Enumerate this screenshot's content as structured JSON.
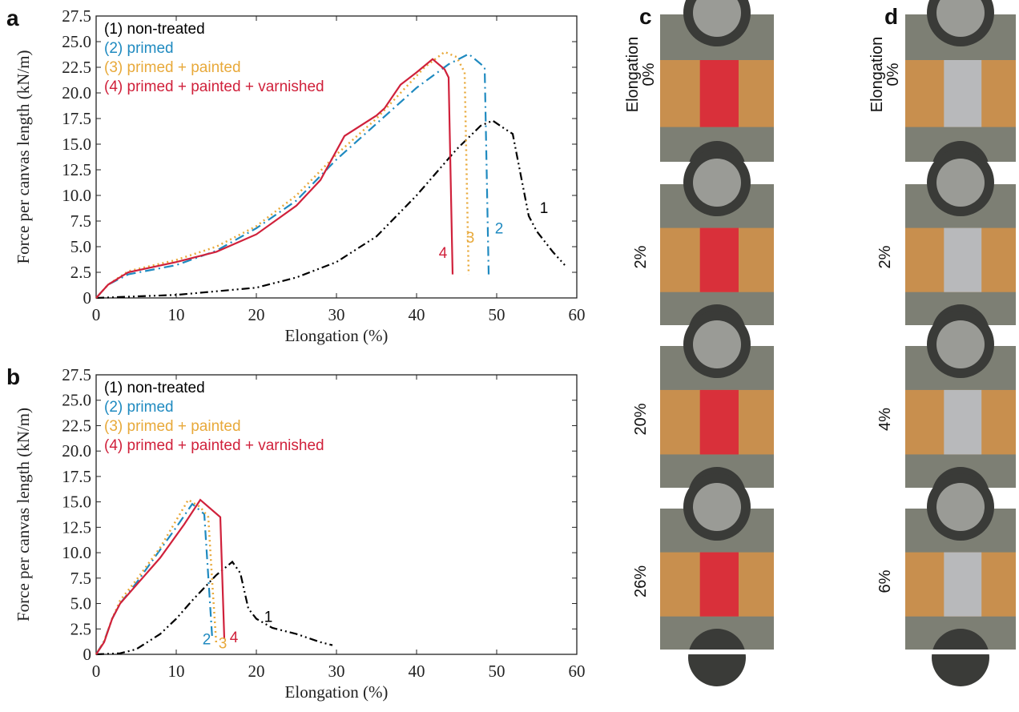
{
  "chart_data": [
    {
      "type": "line",
      "panel": "a",
      "xlabel": "Elongation (%)",
      "ylabel": "Force per canvas length (kN/m)",
      "xlim": [
        0,
        60
      ],
      "ylim": [
        0,
        27.5
      ],
      "xticks": [
        0,
        10,
        20,
        30,
        40,
        50,
        60
      ],
      "yticks": [
        0,
        2.5,
        {
          "value": 5,
          "label": "5.0"
        },
        7.5,
        {
          "value": 10,
          "label": "10.0"
        },
        12.5,
        {
          "value": 15,
          "label": "15.0"
        },
        17.5,
        {
          "value": 20,
          "label": "20.0"
        },
        22.5,
        {
          "value": 25,
          "label": "25.0"
        },
        27.5
      ],
      "legend": "upper left",
      "series": [
        {
          "name": "(1) non-treated",
          "color": "#000000",
          "dash": "dash-dot-dot",
          "x": [
            0,
            10,
            20,
            25,
            30,
            35,
            40,
            45,
            48,
            49.5,
            51,
            52,
            53,
            54,
            55,
            57,
            58.5
          ],
          "values": [
            0,
            0.3,
            1,
            2,
            3.5,
            6,
            10,
            14.5,
            16.8,
            17.3,
            16.5,
            16,
            12,
            8,
            6.5,
            4.5,
            3.2
          ]
        },
        {
          "name": "(2) primed",
          "color": "#1f8ac0",
          "dash": "dash-dot",
          "x": [
            0,
            1.5,
            4,
            10,
            15,
            20,
            25,
            30,
            35,
            40,
            44,
            46.5,
            48.5,
            49
          ],
          "values": [
            0,
            1.3,
            2.3,
            3.2,
            4.6,
            6.8,
            9.5,
            13.5,
            17,
            20.5,
            22.8,
            23.8,
            22.5,
            2.3
          ]
        },
        {
          "name": "(3) primed + painted",
          "color": "#e8a93a",
          "dash": "dot",
          "x": [
            0,
            1.5,
            4,
            10,
            15,
            20,
            25,
            30,
            35,
            38,
            41,
            43.5,
            45,
            46,
            46.5
          ],
          "values": [
            0,
            1.3,
            2.6,
            3.7,
            5,
            7,
            10,
            14,
            17.5,
            20,
            22.5,
            24,
            23.5,
            22,
            2.3
          ]
        },
        {
          "name": "(4) primed + painted + varnished",
          "color": "#d0213b",
          "dash": "solid",
          "x": [
            0,
            1.5,
            4,
            10,
            15,
            20,
            25,
            28,
            31,
            35,
            36,
            38,
            40,
            42,
            43.5,
            44,
            44.5
          ],
          "values": [
            0,
            1.3,
            2.5,
            3.5,
            4.5,
            6.2,
            9,
            11.5,
            15.8,
            17.8,
            18.5,
            20.8,
            22,
            23.3,
            22.3,
            21.5,
            2.3
          ]
        }
      ],
      "annotations": [
        {
          "text": "1",
          "x": 55.9,
          "y": 8.3,
          "color": "#000000"
        },
        {
          "text": "2",
          "x": 50.3,
          "y": 6.3,
          "color": "#1f8ac0"
        },
        {
          "text": "3",
          "x": 46.7,
          "y": 5.4,
          "color": "#e8a93a"
        },
        {
          "text": "4",
          "x": 43.3,
          "y": 3.9,
          "color": "#d0213b"
        }
      ]
    },
    {
      "type": "line",
      "panel": "b",
      "xlabel": "Elongation (%)",
      "ylabel": "Force per canvas length (kN/m)",
      "xlim": [
        0,
        60
      ],
      "ylim": [
        0,
        27.5
      ],
      "xticks": [
        0,
        10,
        20,
        30,
        40,
        50,
        60
      ],
      "yticks": [
        0,
        2.5,
        {
          "value": 5,
          "label": "5.0"
        },
        7.5,
        {
          "value": 10,
          "label": "10.0"
        },
        12.5,
        {
          "value": 15,
          "label": "15.0"
        },
        17.5,
        {
          "value": 20,
          "label": "20.0"
        },
        22.5,
        {
          "value": 25,
          "label": "25.0"
        },
        27.5
      ],
      "legend": "upper left",
      "series": [
        {
          "name": "(1) non-treated",
          "color": "#000000",
          "dash": "dash-dot-dot",
          "x": [
            0,
            3,
            5,
            8,
            10,
            12,
            15,
            17,
            18,
            19,
            20,
            22,
            25,
            28,
            29.5
          ],
          "values": [
            0,
            0.1,
            0.5,
            2,
            3.5,
            5.3,
            7.8,
            9.1,
            8,
            4.5,
            3.5,
            2.6,
            2,
            1.2,
            0.9
          ]
        },
        {
          "name": "(2) primed",
          "color": "#1f8ac0",
          "dash": "dash-dot",
          "x": [
            0,
            1,
            2,
            3,
            5,
            8,
            10,
            12,
            13.5,
            14.5
          ],
          "values": [
            0,
            1.3,
            3.5,
            5,
            7,
            10.3,
            12.5,
            14.8,
            13.8,
            1.5
          ]
        },
        {
          "name": "(3) primed + painted",
          "color": "#e8a93a",
          "dash": "dot",
          "x": [
            0,
            1,
            2,
            3,
            5,
            8,
            11.5,
            13,
            14,
            14.5,
            15
          ],
          "values": [
            0,
            1.3,
            3.5,
            5.3,
            7.3,
            10.5,
            15.2,
            14.5,
            13.5,
            7,
            1
          ]
        },
        {
          "name": "(4) primed + painted + varnished",
          "color": "#d0213b",
          "dash": "solid",
          "x": [
            0,
            1,
            2,
            3,
            5,
            8,
            11,
            13,
            15.5,
            16
          ],
          "values": [
            0,
            1.2,
            3.5,
            5,
            6.8,
            9.5,
            12.8,
            15.2,
            13.5,
            1.5
          ]
        }
      ],
      "annotations": [
        {
          "text": "1",
          "x": 21.5,
          "y": 3.2,
          "color": "#000000"
        },
        {
          "text": "2",
          "x": 13.8,
          "y": 1.0,
          "color": "#1f8ac0"
        },
        {
          "text": "3",
          "x": 15.8,
          "y": 0.6,
          "color": "#e8a93a"
        },
        {
          "text": "4",
          "x": 17.2,
          "y": 1.2,
          "color": "#d0213b"
        }
      ]
    }
  ],
  "photo_panels": [
    {
      "label": "c",
      "caption": "Elongation",
      "rows": [
        "0%",
        "2%",
        "20%",
        "26%"
      ],
      "strip": "#d9303a"
    },
    {
      "label": "d",
      "caption": "Elongation",
      "rows": [
        "0%",
        "2%",
        "4%",
        "6%"
      ],
      "strip": "#b8b9bb"
    }
  ]
}
